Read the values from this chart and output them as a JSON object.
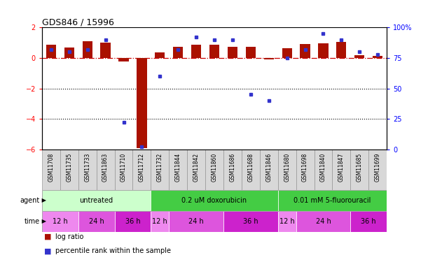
{
  "title": "GDS846 / 15996",
  "samples": [
    "GSM11708",
    "GSM11735",
    "GSM11733",
    "GSM11863",
    "GSM11710",
    "GSM11712",
    "GSM11732",
    "GSM11844",
    "GSM11842",
    "GSM11860",
    "GSM11686",
    "GSM11688",
    "GSM11846",
    "GSM11680",
    "GSM11698",
    "GSM11840",
    "GSM11847",
    "GSM11685",
    "GSM11699"
  ],
  "log_ratio": [
    0.85,
    0.7,
    1.1,
    1.0,
    -0.25,
    -5.9,
    0.35,
    0.75,
    0.85,
    0.85,
    0.75,
    0.75,
    -0.1,
    0.65,
    0.9,
    0.95,
    1.05,
    0.2,
    0.15
  ],
  "percentile": [
    82,
    80,
    82,
    90,
    22,
    2,
    60,
    82,
    92,
    90,
    90,
    45,
    40,
    75,
    82,
    95,
    90,
    80,
    78
  ],
  "bar_color": "#aa1100",
  "dot_color": "#3333cc",
  "ylim_left": [
    -6,
    2
  ],
  "ylim_right": [
    0,
    100
  ],
  "yticks_left": [
    -6,
    -4,
    -2,
    0,
    2
  ],
  "yticks_right": [
    0,
    25,
    50,
    75,
    100
  ],
  "yticklabels_right": [
    "0",
    "25",
    "50",
    "75",
    "100%"
  ],
  "hline_color": "#cc0000",
  "dotted_lines": [
    -2,
    -4
  ],
  "agent_groups": [
    {
      "label": "untreated",
      "start": 0,
      "end": 5,
      "color": "#ccffcc"
    },
    {
      "label": "0.2 uM doxorubicin",
      "start": 6,
      "end": 12,
      "color": "#44cc44"
    },
    {
      "label": "0.01 mM 5-fluorouracil",
      "start": 13,
      "end": 18,
      "color": "#44cc44"
    }
  ],
  "time_groups": [
    {
      "label": "12 h",
      "start": 0,
      "end": 1,
      "color": "#ee88ee"
    },
    {
      "label": "24 h",
      "start": 2,
      "end": 3,
      "color": "#dd55dd"
    },
    {
      "label": "36 h",
      "start": 4,
      "end": 5,
      "color": "#cc22cc"
    },
    {
      "label": "12 h",
      "start": 6,
      "end": 6,
      "color": "#ee88ee"
    },
    {
      "label": "24 h",
      "start": 7,
      "end": 9,
      "color": "#dd55dd"
    },
    {
      "label": "36 h",
      "start": 10,
      "end": 12,
      "color": "#cc22cc"
    },
    {
      "label": "12 h",
      "start": 13,
      "end": 13,
      "color": "#ee88ee"
    },
    {
      "label": "24 h",
      "start": 14,
      "end": 16,
      "color": "#dd55dd"
    },
    {
      "label": "36 h",
      "start": 17,
      "end": 18,
      "color": "#cc22cc"
    }
  ],
  "legend_items": [
    {
      "label": "log ratio",
      "color": "#aa1100"
    },
    {
      "label": "percentile rank within the sample",
      "color": "#3333cc"
    }
  ],
  "sample_bg": "#d8d8d8",
  "sample_border": "#888888"
}
